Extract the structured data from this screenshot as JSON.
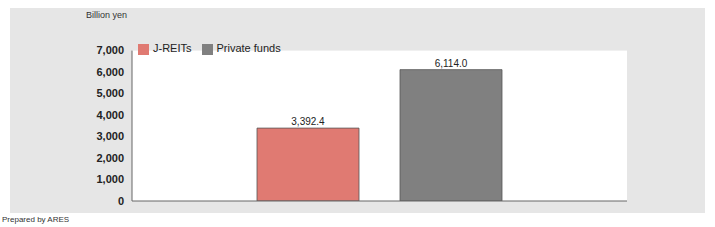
{
  "chart_data": {
    "type": "bar",
    "y_label": "Billion yen",
    "footnote": "Prepared by ARES",
    "categories": [
      null
    ],
    "series": [
      {
        "name": "J-REITs",
        "color": "#e07a72",
        "values": [
          3392.4
        ],
        "value_labels": [
          "3,392.4"
        ]
      },
      {
        "name": "Private funds",
        "color": "#808080",
        "values": [
          6114.0
        ],
        "value_labels": [
          "6,114.0"
        ]
      }
    ],
    "ylim": [
      0,
      7000
    ],
    "yticks": [
      0,
      {
        "value": 1000,
        "label": "1,000"
      },
      {
        "value": 2000,
        "label": "2,000"
      },
      {
        "value": 3000,
        "label": "3,000"
      },
      {
        "value": 4000,
        "label": "4,000"
      },
      {
        "value": 5000,
        "label": "5,000"
      },
      {
        "value": 6000,
        "label": "6,000"
      },
      {
        "value": 7000,
        "label": "7,000"
      }
    ],
    "grid": false,
    "legend": "upper left",
    "data_labels": true
  }
}
